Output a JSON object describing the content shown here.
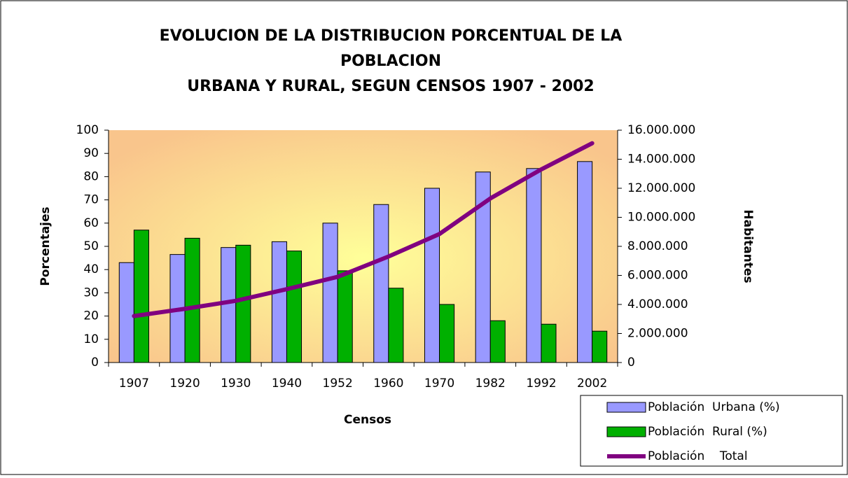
{
  "chart_data": {
    "type": "bar",
    "title": [
      "EVOLUCION DE LA DISTRIBUCION PORCENTUAL DE LA",
      "POBLACION",
      "URBANA Y RURAL, SEGUN CENSOS 1907 - 2002"
    ],
    "x_label": "Censos",
    "y_label": "Porcentajes",
    "y2_label": "Habitantes",
    "categories": [
      "1907",
      "1920",
      "1930",
      "1940",
      "1952",
      "1960",
      "1970",
      "1982",
      "1992",
      "2002"
    ],
    "series": [
      {
        "name": "Población  Urbana (%)",
        "type": "bar",
        "color": "#9999ff",
        "values": [
          43,
          46.5,
          49.5,
          52,
          60,
          68,
          75,
          82,
          83.5,
          86.5
        ]
      },
      {
        "name": "Población  Rural (%)",
        "type": "bar",
        "color": "#00b000",
        "values": [
          57,
          53.5,
          50.5,
          48,
          39.5,
          32,
          25,
          18,
          16.5,
          13.5
        ]
      },
      {
        "name": "Población    Total",
        "type": "line",
        "axis": "y2",
        "color": "#800080",
        "values": [
          3200000,
          3700000,
          4250000,
          5050000,
          5900000,
          7300000,
          8850000,
          11300000,
          13300000,
          15100000
        ]
      }
    ],
    "ylim": [
      0,
      100
    ],
    "yticks": [
      0,
      10,
      20,
      30,
      40,
      50,
      60,
      70,
      80,
      90,
      100
    ],
    "y2lim": [
      0,
      16000000
    ],
    "y2ticks": [
      {
        "value": 0,
        "label": "0"
      },
      {
        "value": 2000000,
        "label": "2.000.000"
      },
      {
        "value": 4000000,
        "label": "4.000.000"
      },
      {
        "value": 6000000,
        "label": "6.000.000"
      },
      {
        "value": 8000000,
        "label": "8.000.000"
      },
      {
        "value": 10000000,
        "label": "10.000.000"
      },
      {
        "value": 12000000,
        "label": "12.000.000"
      },
      {
        "value": 14000000,
        "label": "14.000.000"
      },
      {
        "value": 16000000,
        "label": "16.000.000"
      }
    ],
    "legend": "bottom-right"
  }
}
